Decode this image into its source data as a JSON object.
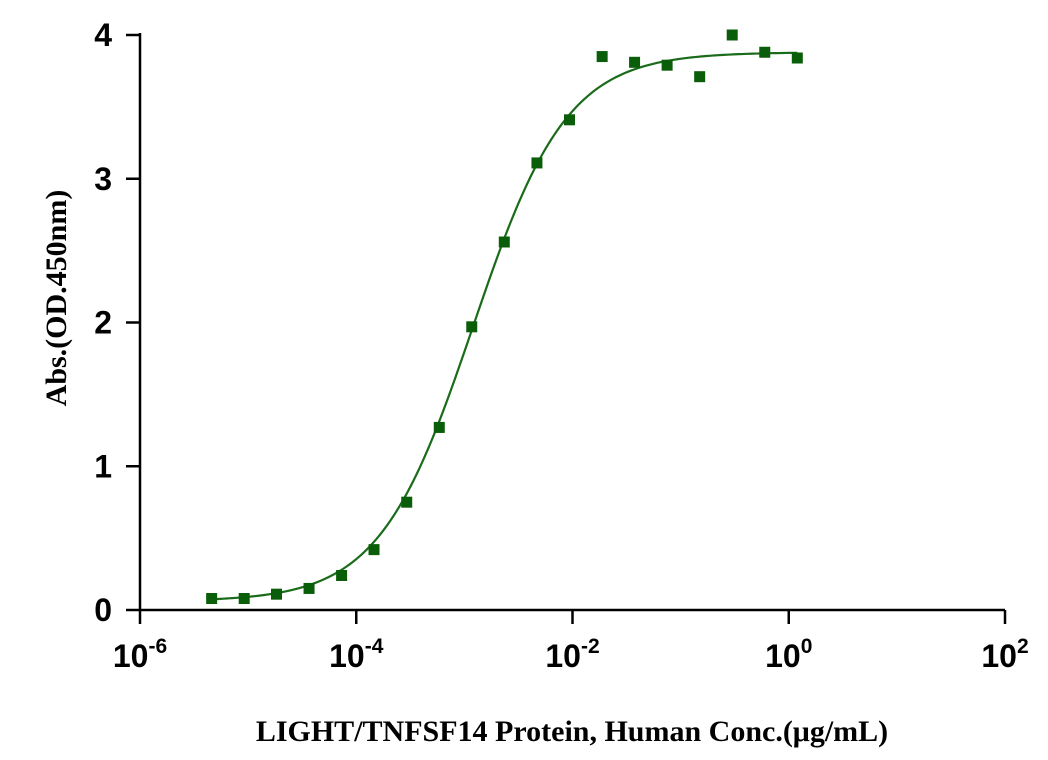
{
  "chart_data": {
    "type": "scatter",
    "xlabel": "LIGHT/TNFSF14 Protein, Human Conc.(μg/mL)",
    "ylabel": "Abs.(OD.450nm)",
    "x_scale": "log",
    "xlim": [
      1e-06,
      100
    ],
    "ylim": [
      0,
      4
    ],
    "x_ticks": [
      {
        "base": "10",
        "exp": "-6",
        "value": 1e-06
      },
      {
        "base": "10",
        "exp": "-4",
        "value": 0.0001
      },
      {
        "base": "10",
        "exp": "-2",
        "value": 0.01
      },
      {
        "base": "10",
        "exp": "0",
        "value": 1
      },
      {
        "base": "10",
        "exp": "2",
        "value": 100
      }
    ],
    "y_ticks": [
      {
        "label": "0",
        "value": 0
      },
      {
        "label": "1",
        "value": 1
      },
      {
        "label": "2",
        "value": 2
      },
      {
        "label": "3",
        "value": 3
      },
      {
        "label": "4",
        "value": 4
      }
    ],
    "grid": false,
    "series": [
      {
        "color": "#0a5e0a",
        "marker": "square",
        "fit": "4PL sigmoid",
        "x": [
          4.6e-06,
          9.2e-06,
          1.83e-05,
          3.66e-05,
          7.32e-05,
          0.000146,
          0.000293,
          0.000586,
          0.00117,
          0.00234,
          0.00469,
          0.00938,
          0.0188,
          0.0375,
          0.075,
          0.15,
          0.3,
          0.6,
          1.2
        ],
        "y": [
          0.08,
          0.08,
          0.11,
          0.15,
          0.24,
          0.42,
          0.75,
          1.27,
          1.97,
          2.56,
          3.11,
          3.41,
          3.85,
          3.81,
          3.79,
          3.71,
          4.0,
          3.88,
          3.84
        ]
      }
    ],
    "fit_params": {
      "bottom": 0.06,
      "top": 3.88,
      "ec50": 0.0012,
      "hill": 1.0
    }
  }
}
